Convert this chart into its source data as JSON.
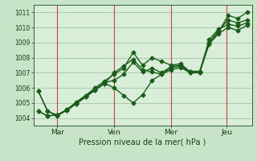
{
  "xlabel": "Pression niveau de la mer( hPa )",
  "bg_color": "#c8e4c8",
  "plot_bg_color": "#d8eed8",
  "grid_color": "#99bb99",
  "line_color": "#1a5c1a",
  "vline_color": "#cc4444",
  "ylim": [
    1003.5,
    1011.5
  ],
  "yticks": [
    1004,
    1005,
    1006,
    1007,
    1008,
    1009,
    1010,
    1011
  ],
  "day_labels": [
    "Mar",
    "Ven",
    "Mer",
    "Jeu"
  ],
  "day_positions": [
    12,
    48,
    84,
    119
  ],
  "vline_positions": [
    12,
    48,
    84,
    119
  ],
  "x": [
    0,
    6,
    12,
    18,
    24,
    30,
    36,
    42,
    48,
    54,
    60,
    66,
    72,
    78,
    84,
    90,
    96,
    102,
    108,
    114,
    120,
    126,
    132
  ],
  "line1": [
    1005.8,
    1004.45,
    1004.2,
    1004.55,
    1005.05,
    1005.5,
    1006.0,
    1006.45,
    1006.9,
    1007.3,
    1008.35,
    1007.5,
    1008.0,
    1007.75,
    1007.5,
    1007.6,
    1007.05,
    1007.05,
    1009.0,
    1009.8,
    1010.5,
    1010.3,
    1010.5
  ],
  "line2": [
    1004.45,
    1004.15,
    1004.2,
    1004.55,
    1005.0,
    1005.45,
    1005.9,
    1006.35,
    1006.5,
    1006.9,
    1007.7,
    1007.05,
    1007.3,
    1007.0,
    1007.4,
    1007.5,
    1007.0,
    1007.0,
    1009.2,
    1009.9,
    1010.2,
    1010.1,
    1010.3
  ],
  "line3": [
    1004.45,
    1004.15,
    1004.2,
    1004.5,
    1004.95,
    1005.4,
    1005.85,
    1006.3,
    1006.0,
    1005.5,
    1005.0,
    1005.55,
    1006.5,
    1006.9,
    1007.35,
    1007.45,
    1007.1,
    1007.1,
    1009.0,
    1009.7,
    1010.8,
    1010.6,
    1011.0
  ],
  "line4": [
    1005.8,
    1004.45,
    1004.15,
    1004.5,
    1004.95,
    1005.4,
    1005.85,
    1006.3,
    1007.0,
    1007.45,
    1007.9,
    1007.2,
    1007.05,
    1006.9,
    1007.2,
    1007.35,
    1007.0,
    1007.0,
    1008.9,
    1009.6,
    1010.0,
    1009.8,
    1010.15
  ],
  "marker": "D",
  "markersize": 2.5,
  "linewidth": 1.0,
  "xlim": [
    -3,
    135
  ]
}
